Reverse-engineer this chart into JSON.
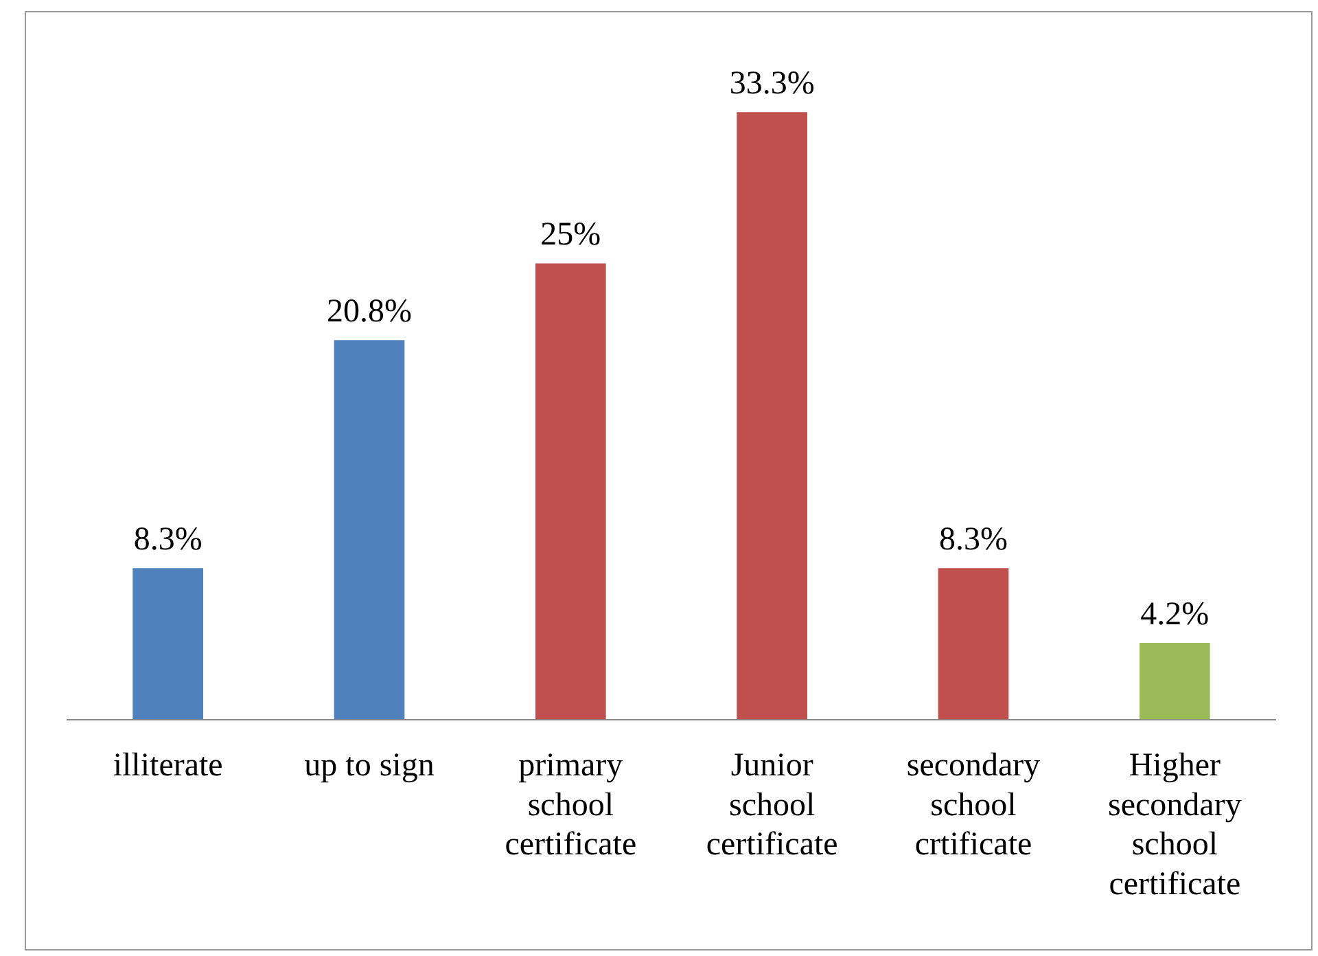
{
  "chart_data": {
    "type": "bar",
    "categories": [
      "illiterate",
      "up to sign",
      "primary school certificate",
      "Junior school certificate",
      "secondary school crtificate",
      "Higher secondary school certificate"
    ],
    "values": [
      8.3,
      20.8,
      25,
      33.3,
      8.3,
      4.2
    ],
    "colors": [
      "#4f81bd",
      "#4f81bd",
      "#c0504d",
      "#c0504d",
      "#c0504d",
      "#9bbb59"
    ],
    "value_labels": [
      "8.3%",
      "20.8%",
      "25%",
      "33.3%",
      "8.3%",
      "4.2%"
    ],
    "legend": false,
    "grid": false
  }
}
